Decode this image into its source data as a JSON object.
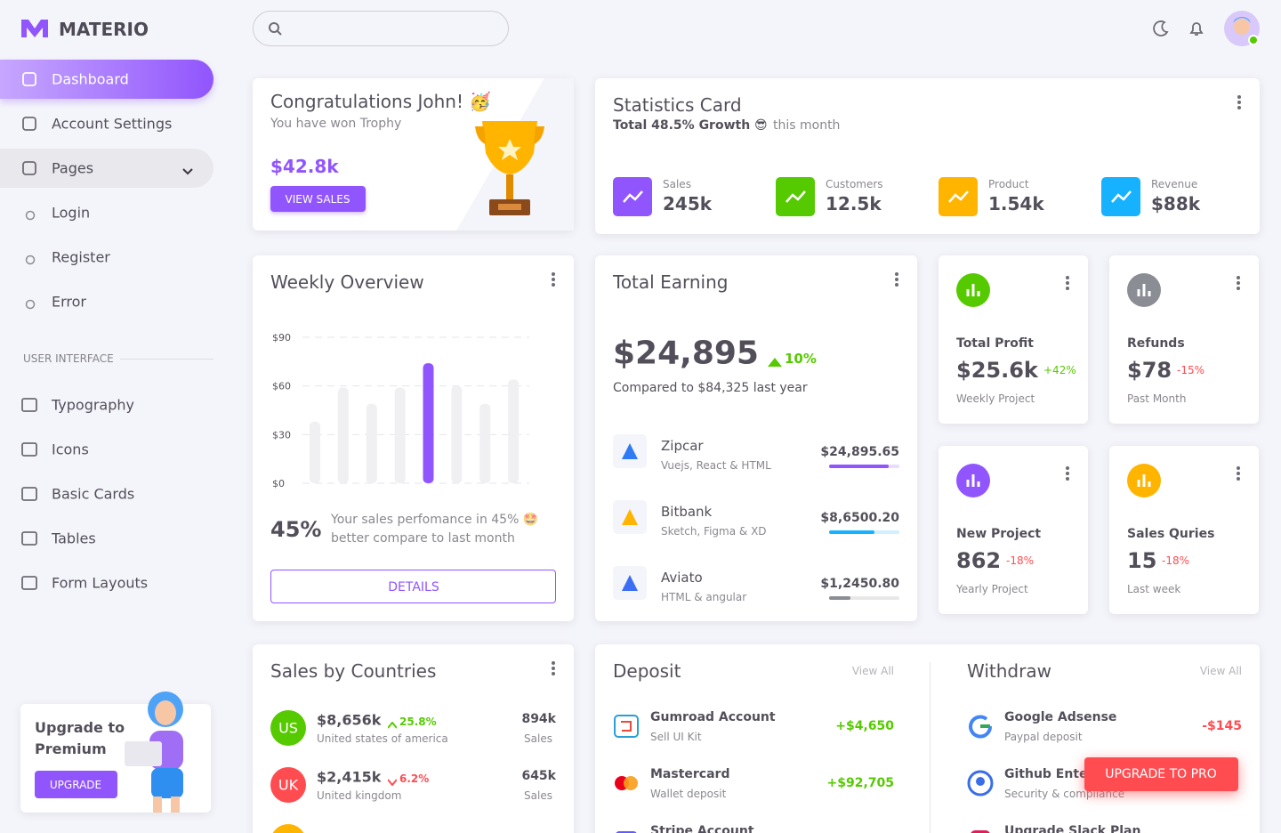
{
  "brand": "MATERIO",
  "nav": [
    "Dashboard",
    "Account Settings",
    "Pages",
    "Login",
    "Register",
    "Error"
  ],
  "section": "USER INTERFACE",
  "nav2": [
    "Typography",
    "Icons",
    "Basic Cards",
    "Tables",
    "Form Layouts"
  ],
  "upgrade": {
    "title": "Upgrade to Premium",
    "button": "UPGRADE"
  },
  "congrats": {
    "title": "Congratulations John! 🥳",
    "subtitle": "You have won Trophy",
    "amount": "$42.8k",
    "button": "VIEW SALES"
  },
  "statistics": {
    "title": "Statistics Card",
    "growth": "Total 48.5% Growth 😎",
    "period": "this month",
    "items": [
      {
        "label": "Sales",
        "value": "245k"
      },
      {
        "label": "Customers",
        "value": "12.5k"
      },
      {
        "label": "Product",
        "value": "1.54k"
      },
      {
        "label": "Revenue",
        "value": "$88k"
      }
    ]
  },
  "chart_data": {
    "type": "bar",
    "title": "Weekly Overview",
    "values": [
      38,
      59,
      49,
      59,
      74,
      60,
      49,
      64
    ],
    "colors": [
      "#f0f0f3",
      "#f0f0f3",
      "#f0f0f3",
      "#f0f0f3",
      "#9155fd",
      "#f0f0f3",
      "#f0f0f3",
      "#f0f0f3"
    ],
    "ylim": [
      0,
      90
    ],
    "yticks": [
      {
        "value": 0,
        "label": "$0"
      },
      {
        "value": 30,
        "label": "$30"
      },
      {
        "value": 60,
        "label": "$60"
      },
      {
        "value": 90,
        "label": "$90"
      }
    ],
    "grid": true
  },
  "weekly": {
    "percent": "45%",
    "text": "Your sales perfomance in 45% 🤩 better compare to last month",
    "button": "DETAILS"
  },
  "earning": {
    "title": "Total Earning",
    "amount": "$24,895",
    "change": "10%",
    "compare": "Compared to $84,325 last year",
    "items": [
      {
        "name": "Zipcar",
        "desc": "Vuejs, React & HTML",
        "amount": "$24,895.65",
        "progress": 85,
        "color": "#9155fd"
      },
      {
        "name": "Bitbank",
        "desc": "Sketch, Figma & XD",
        "amount": "$8,6500.20",
        "progress": 65,
        "color": "#16b1ff"
      },
      {
        "name": "Aviato",
        "desc": "HTML & angular",
        "amount": "$1,2450.80",
        "progress": 30,
        "color": "#8a8d93"
      }
    ]
  },
  "mini": [
    {
      "title": "Total Profit",
      "value": "$25.6k",
      "change": "+42%",
      "sub": "Weekly Project"
    },
    {
      "title": "Refunds",
      "value": "$78",
      "change": "-15%",
      "sub": "Past Month"
    },
    {
      "title": "New Project",
      "value": "862",
      "change": "-18%",
      "sub": "Yearly Project"
    },
    {
      "title": "Sales Quries",
      "value": "15",
      "change": "-18%",
      "sub": "Last week"
    }
  ],
  "countries": {
    "title": "Sales by Countries",
    "rows": [
      {
        "code": "US",
        "amount": "$8,656k",
        "change": "25.8%",
        "country": "United states of america",
        "sales": "894k",
        "sales_label": "Sales"
      },
      {
        "code": "UK",
        "amount": "$2,415k",
        "change": "6.2%",
        "country": "United kingdom",
        "sales": "645k",
        "sales_label": "Sales"
      }
    ]
  },
  "deposit": {
    "title": "Deposit",
    "view_all": "View All",
    "rows": [
      {
        "name": "Gumroad Account",
        "desc": "Sell UI Kit",
        "amount": "+$4,650"
      },
      {
        "name": "Mastercard",
        "desc": "Wallet deposit",
        "amount": "+$92,705"
      },
      {
        "name": "Stripe Account"
      }
    ]
  },
  "withdraw": {
    "title": "Withdraw",
    "view_all": "View All",
    "rows": [
      {
        "name": "Google Adsense",
        "desc": "Paypal deposit",
        "amount": "-$145"
      },
      {
        "name": "Github Enterprise",
        "desc": "Security & compliance"
      },
      {
        "name": "Upgrade Slack Plan"
      }
    ]
  },
  "upgrade_pro": "UPGRADE TO PRO"
}
